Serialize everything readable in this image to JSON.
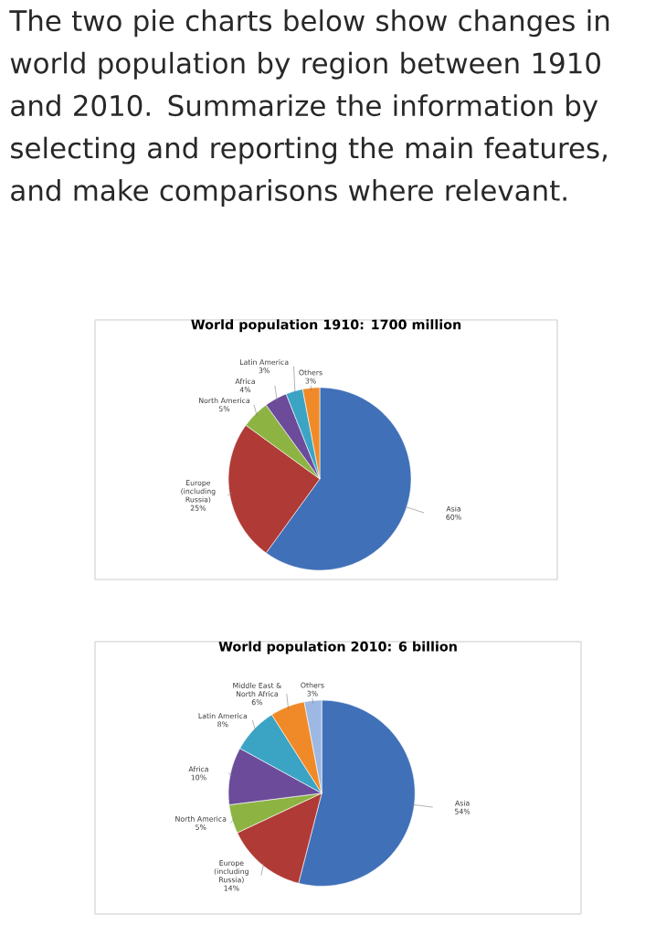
{
  "chart_data": [
    {
      "type": "other",
      "title": "The two pie charts below show changes in world population by region between 1910 and 2010. Summarize the information by selecting and reporting the main features, and make comparisons where relevant."
    },
    {
      "type": "pie",
      "title": "World population 1910: 1700 million",
      "categories": [
        "Asia",
        "Europe (including Russia)",
        "North America",
        "Africa",
        "Latin America",
        "Others"
      ],
      "values": [
        60,
        25,
        5,
        4,
        3,
        3
      ],
      "value_labels": [
        "60%",
        "25%",
        "5%",
        "4%",
        "3%",
        "3%"
      ],
      "colors": [
        "#4070b8",
        "#b03a36",
        "#8db443",
        "#6b4b9a",
        "#3ba4c4",
        "#f08a28"
      ]
    },
    {
      "type": "pie",
      "title": "World population 2010: 6 billion",
      "categories": [
        "Asia",
        "Europe (including Russia)",
        "North America",
        "Africa",
        "Latin America",
        "Middle East & North Africa",
        "Others"
      ],
      "values": [
        54,
        14,
        5,
        10,
        8,
        6,
        3
      ],
      "value_labels": [
        "54%",
        "14%",
        "5%",
        "10%",
        "8%",
        "6%",
        "3%"
      ],
      "colors": [
        "#4070b8",
        "#b03a36",
        "#8db443",
        "#6b4b9a",
        "#3ba4c4",
        "#f08a28",
        "#9db8e2"
      ]
    }
  ]
}
